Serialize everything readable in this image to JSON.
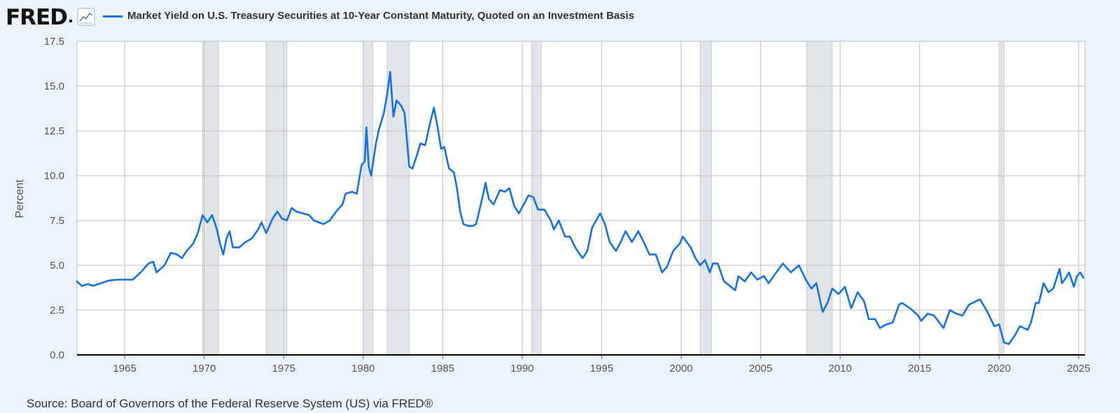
{
  "header": {
    "logo_text": "FRED",
    "title": "Market Yield on U.S. Treasury Securities at 10-Year Constant Maturity, Quoted on an Investment Basis"
  },
  "footer": {
    "source": "Source: Board of Governors of the Federal Reserve System (US) via FRED®"
  },
  "colors": {
    "series": "#1472e6",
    "recession": "#e1e5ea",
    "background": "#edf3fb",
    "plot_background": "#ffffff"
  },
  "chart_data": {
    "type": "line",
    "title": "Market Yield on U.S. Treasury Securities at 10-Year Constant Maturity, Quoted on an Investment Basis",
    "xlabel": "",
    "ylabel": "Percent",
    "xlim": [
      1962.0,
      2025.4
    ],
    "ylim": [
      0,
      17.5
    ],
    "y_ticks": [
      "0.0",
      "2.5",
      "5.0",
      "7.5",
      "10.0",
      "12.5",
      "15.0",
      "17.5"
    ],
    "x_ticks": [
      "1965",
      "1970",
      "1975",
      "1980",
      "1985",
      "1990",
      "1995",
      "2000",
      "2005",
      "2010",
      "2015",
      "2020",
      "2025"
    ],
    "grid": true,
    "recessions": [
      [
        1969.9,
        1970.9
      ],
      [
        1973.9,
        1975.2
      ],
      [
        1980.0,
        1980.6
      ],
      [
        1981.5,
        1982.9
      ],
      [
        1990.6,
        1991.2
      ],
      [
        2001.2,
        2001.9
      ],
      [
        2007.9,
        2009.5
      ],
      [
        2020.1,
        2020.3
      ]
    ],
    "series": [
      {
        "name": "Market Yield on U.S. Treasury Securities at 10-Year Constant Maturity, Quoted on an Investment Basis",
        "points": [
          [
            1962.0,
            4.1
          ],
          [
            1962.3,
            3.85
          ],
          [
            1962.7,
            3.95
          ],
          [
            1963.0,
            3.85
          ],
          [
            1963.5,
            4.0
          ],
          [
            1964.0,
            4.15
          ],
          [
            1964.5,
            4.2
          ],
          [
            1965.0,
            4.2
          ],
          [
            1965.5,
            4.2
          ],
          [
            1966.0,
            4.6
          ],
          [
            1966.5,
            5.1
          ],
          [
            1966.8,
            5.2
          ],
          [
            1967.0,
            4.6
          ],
          [
            1967.5,
            5.0
          ],
          [
            1967.9,
            5.7
          ],
          [
            1968.3,
            5.6
          ],
          [
            1968.6,
            5.4
          ],
          [
            1968.9,
            5.8
          ],
          [
            1969.3,
            6.2
          ],
          [
            1969.6,
            6.8
          ],
          [
            1969.9,
            7.8
          ],
          [
            1970.2,
            7.4
          ],
          [
            1970.5,
            7.8
          ],
          [
            1970.8,
            7.0
          ],
          [
            1971.0,
            6.2
          ],
          [
            1971.2,
            5.6
          ],
          [
            1971.4,
            6.5
          ],
          [
            1971.6,
            6.9
          ],
          [
            1971.8,
            6.0
          ],
          [
            1972.2,
            6.0
          ],
          [
            1972.6,
            6.3
          ],
          [
            1973.0,
            6.5
          ],
          [
            1973.4,
            7.0
          ],
          [
            1973.6,
            7.4
          ],
          [
            1973.9,
            6.8
          ],
          [
            1974.3,
            7.6
          ],
          [
            1974.6,
            8.0
          ],
          [
            1974.9,
            7.6
          ],
          [
            1975.2,
            7.5
          ],
          [
            1975.5,
            8.2
          ],
          [
            1975.8,
            8.0
          ],
          [
            1976.2,
            7.9
          ],
          [
            1976.6,
            7.8
          ],
          [
            1976.9,
            7.5
          ],
          [
            1977.2,
            7.4
          ],
          [
            1977.5,
            7.3
          ],
          [
            1977.9,
            7.5
          ],
          [
            1978.3,
            8.0
          ],
          [
            1978.7,
            8.4
          ],
          [
            1978.9,
            9.0
          ],
          [
            1979.3,
            9.1
          ],
          [
            1979.6,
            9.0
          ],
          [
            1979.9,
            10.6
          ],
          [
            1980.1,
            10.8
          ],
          [
            1980.2,
            12.7
          ],
          [
            1980.35,
            10.5
          ],
          [
            1980.5,
            10.0
          ],
          [
            1980.8,
            11.8
          ],
          [
            1981.0,
            12.6
          ],
          [
            1981.3,
            13.5
          ],
          [
            1981.5,
            14.5
          ],
          [
            1981.7,
            15.8
          ],
          [
            1981.9,
            13.3
          ],
          [
            1982.1,
            14.2
          ],
          [
            1982.4,
            13.9
          ],
          [
            1982.6,
            13.5
          ],
          [
            1982.9,
            10.5
          ],
          [
            1983.1,
            10.4
          ],
          [
            1983.4,
            11.2
          ],
          [
            1983.6,
            11.8
          ],
          [
            1983.9,
            11.7
          ],
          [
            1984.2,
            12.9
          ],
          [
            1984.45,
            13.8
          ],
          [
            1984.7,
            12.6
          ],
          [
            1984.9,
            11.5
          ],
          [
            1985.1,
            11.6
          ],
          [
            1985.4,
            10.4
          ],
          [
            1985.7,
            10.2
          ],
          [
            1985.9,
            9.3
          ],
          [
            1986.1,
            8.0
          ],
          [
            1986.3,
            7.3
          ],
          [
            1986.6,
            7.2
          ],
          [
            1986.9,
            7.2
          ],
          [
            1987.1,
            7.3
          ],
          [
            1987.4,
            8.4
          ],
          [
            1987.7,
            9.6
          ],
          [
            1987.9,
            8.7
          ],
          [
            1988.2,
            8.4
          ],
          [
            1988.6,
            9.2
          ],
          [
            1988.9,
            9.1
          ],
          [
            1989.2,
            9.3
          ],
          [
            1989.5,
            8.3
          ],
          [
            1989.8,
            7.9
          ],
          [
            1990.1,
            8.4
          ],
          [
            1990.4,
            8.9
          ],
          [
            1990.7,
            8.8
          ],
          [
            1991.0,
            8.1
          ],
          [
            1991.4,
            8.1
          ],
          [
            1991.8,
            7.5
          ],
          [
            1992.0,
            7.0
          ],
          [
            1992.3,
            7.5
          ],
          [
            1992.7,
            6.6
          ],
          [
            1993.0,
            6.6
          ],
          [
            1993.4,
            5.9
          ],
          [
            1993.8,
            5.4
          ],
          [
            1994.1,
            5.8
          ],
          [
            1994.4,
            7.1
          ],
          [
            1994.9,
            7.9
          ],
          [
            1995.2,
            7.3
          ],
          [
            1995.5,
            6.3
          ],
          [
            1995.9,
            5.8
          ],
          [
            1996.2,
            6.3
          ],
          [
            1996.5,
            6.9
          ],
          [
            1996.9,
            6.3
          ],
          [
            1997.3,
            6.9
          ],
          [
            1997.7,
            6.2
          ],
          [
            1998.0,
            5.6
          ],
          [
            1998.4,
            5.6
          ],
          [
            1998.8,
            4.6
          ],
          [
            1999.1,
            4.9
          ],
          [
            1999.5,
            5.8
          ],
          [
            1999.9,
            6.2
          ],
          [
            2000.1,
            6.6
          ],
          [
            2000.6,
            6.0
          ],
          [
            2000.9,
            5.4
          ],
          [
            2001.2,
            5.0
          ],
          [
            2001.5,
            5.3
          ],
          [
            2001.8,
            4.6
          ],
          [
            2002.0,
            5.1
          ],
          [
            2002.3,
            5.1
          ],
          [
            2002.7,
            4.1
          ],
          [
            2003.0,
            3.9
          ],
          [
            2003.4,
            3.6
          ],
          [
            2003.6,
            4.4
          ],
          [
            2004.0,
            4.1
          ],
          [
            2004.4,
            4.6
          ],
          [
            2004.8,
            4.2
          ],
          [
            2005.2,
            4.4
          ],
          [
            2005.5,
            4.0
          ],
          [
            2005.9,
            4.5
          ],
          [
            2006.4,
            5.1
          ],
          [
            2006.9,
            4.6
          ],
          [
            2007.4,
            5.0
          ],
          [
            2007.9,
            4.1
          ],
          [
            2008.2,
            3.7
          ],
          [
            2008.5,
            4.0
          ],
          [
            2008.9,
            2.4
          ],
          [
            2009.2,
            2.9
          ],
          [
            2009.5,
            3.7
          ],
          [
            2009.9,
            3.4
          ],
          [
            2010.3,
            3.8
          ],
          [
            2010.7,
            2.6
          ],
          [
            2011.1,
            3.5
          ],
          [
            2011.5,
            3.0
          ],
          [
            2011.8,
            2.0
          ],
          [
            2012.2,
            2.0
          ],
          [
            2012.5,
            1.5
          ],
          [
            2012.9,
            1.7
          ],
          [
            2013.3,
            1.8
          ],
          [
            2013.7,
            2.8
          ],
          [
            2013.9,
            2.9
          ],
          [
            2014.4,
            2.6
          ],
          [
            2014.9,
            2.2
          ],
          [
            2015.1,
            1.9
          ],
          [
            2015.5,
            2.3
          ],
          [
            2015.9,
            2.2
          ],
          [
            2016.5,
            1.5
          ],
          [
            2016.9,
            2.5
          ],
          [
            2017.3,
            2.3
          ],
          [
            2017.7,
            2.2
          ],
          [
            2018.1,
            2.8
          ],
          [
            2018.8,
            3.1
          ],
          [
            2019.2,
            2.5
          ],
          [
            2019.7,
            1.6
          ],
          [
            2020.0,
            1.7
          ],
          [
            2020.3,
            0.7
          ],
          [
            2020.6,
            0.6
          ],
          [
            2021.0,
            1.1
          ],
          [
            2021.3,
            1.6
          ],
          [
            2021.8,
            1.4
          ],
          [
            2022.0,
            1.8
          ],
          [
            2022.3,
            2.9
          ],
          [
            2022.5,
            2.9
          ],
          [
            2022.8,
            4.0
          ],
          [
            2023.1,
            3.5
          ],
          [
            2023.4,
            3.7
          ],
          [
            2023.8,
            4.8
          ],
          [
            2023.95,
            4.0
          ],
          [
            2024.2,
            4.3
          ],
          [
            2024.4,
            4.6
          ],
          [
            2024.7,
            3.8
          ],
          [
            2024.9,
            4.4
          ],
          [
            2025.1,
            4.6
          ],
          [
            2025.3,
            4.3
          ]
        ]
      }
    ]
  }
}
